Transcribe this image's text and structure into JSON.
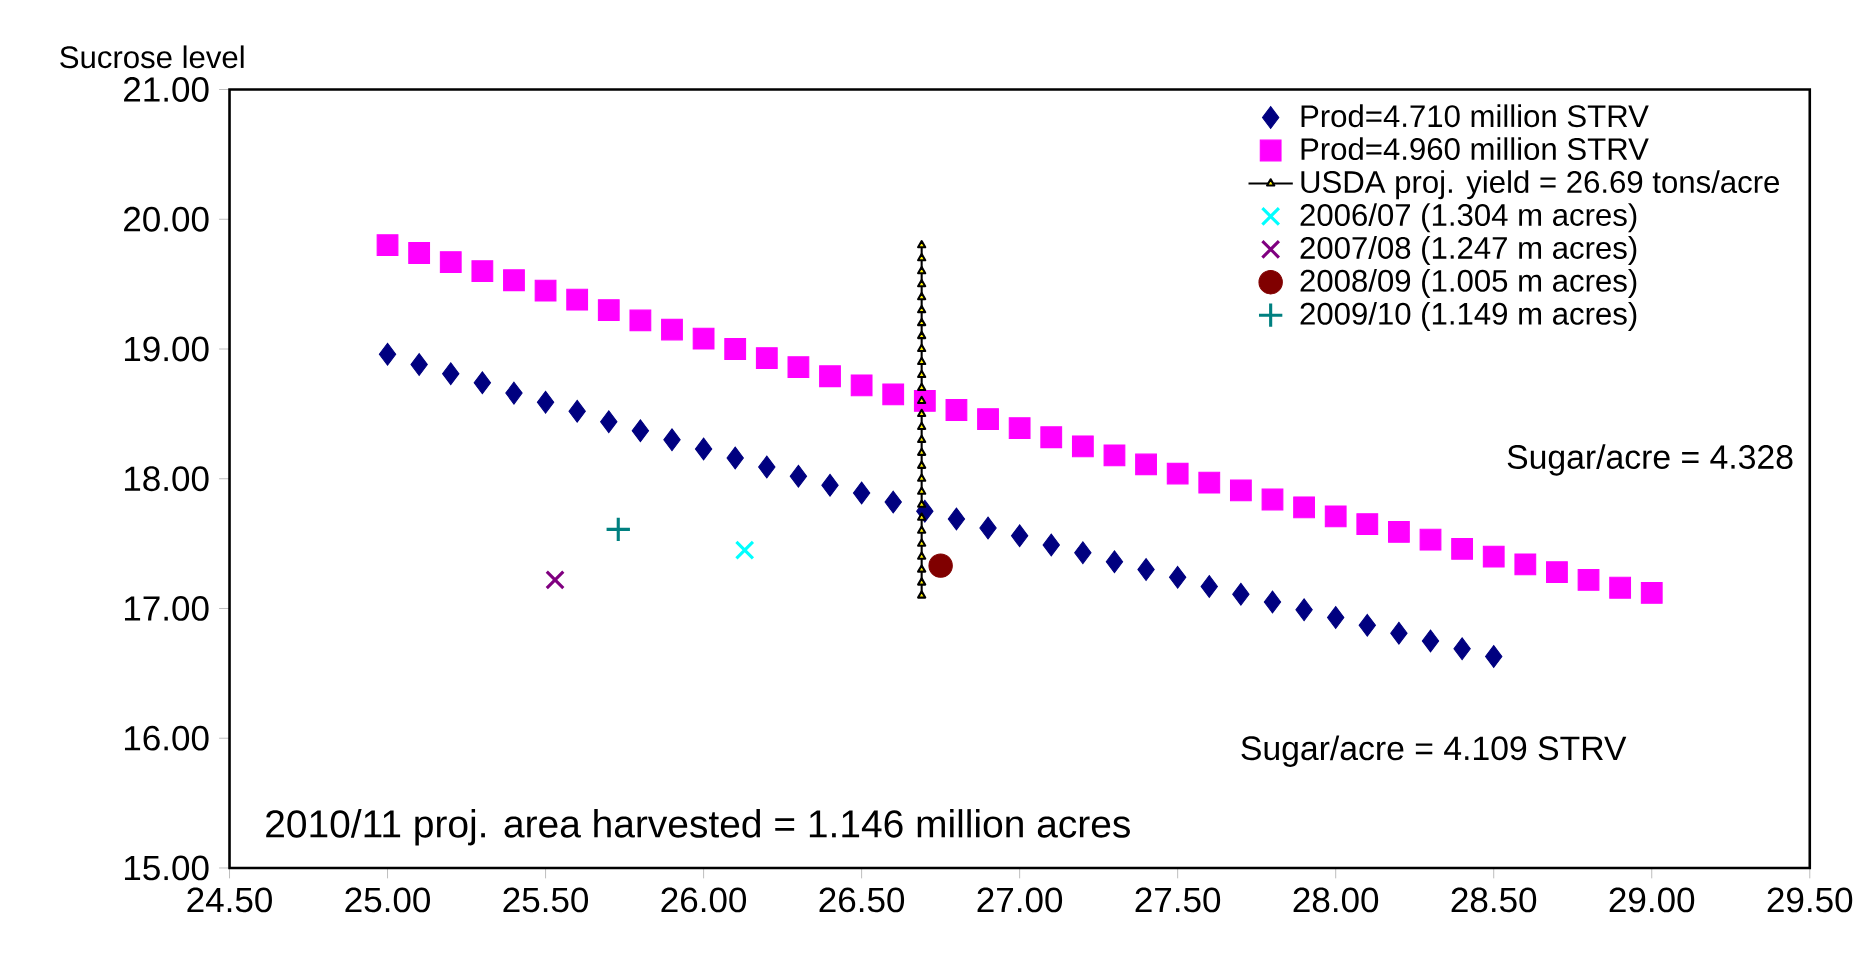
{
  "chart_data": {
    "type": "scatter",
    "ylabel": "Sucrose level",
    "xlim": [
      24.5,
      29.5
    ],
    "ylim": [
      15,
      21
    ],
    "xticks": [
      {
        "value": 24.5,
        "label": "24.50"
      },
      {
        "value": 25,
        "label": "25.00"
      },
      {
        "value": 25.5,
        "label": "25.50"
      },
      {
        "value": 26,
        "label": "26.00"
      },
      {
        "value": 26.5,
        "label": "26.50"
      },
      {
        "value": 27,
        "label": "27.00"
      },
      {
        "value": 27.5,
        "label": "27.50"
      },
      {
        "value": 28,
        "label": "28.00"
      },
      {
        "value": 28.5,
        "label": "28.50"
      },
      {
        "value": 29,
        "label": "29.00"
      },
      {
        "value": 29.5,
        "label": "29.50"
      }
    ],
    "yticks": [
      {
        "value": 15,
        "label": "15.00"
      },
      {
        "value": 16,
        "label": "16.00"
      },
      {
        "value": 17,
        "label": "17.00"
      },
      {
        "value": 18,
        "label": "18.00"
      },
      {
        "value": 19,
        "label": "19.00"
      },
      {
        "value": 20,
        "label": "20.00"
      },
      {
        "value": 21,
        "label": "21.00"
      }
    ],
    "grid": false,
    "legend": "top right",
    "annotations": [
      "Sugar/acre = 4.328",
      "Sugar/acre = 4.109  STRV",
      "2010/11 proj. area harvested = 1.146 million acres"
    ],
    "series": [
      {
        "name": "Prod=4.710 million STRV",
        "color": "#000080",
        "marker": "diamond",
        "x": [
          25.0,
          25.1,
          25.2,
          25.3,
          25.4,
          25.5,
          25.6,
          25.7,
          25.8,
          25.9,
          26.0,
          26.1,
          26.2,
          26.3,
          26.4,
          26.5,
          26.6,
          26.7,
          26.8,
          26.9,
          27.0,
          27.1,
          27.2,
          27.3,
          27.4,
          27.5,
          27.6,
          27.7,
          27.8,
          27.9,
          28.0,
          28.1,
          28.2,
          28.3,
          28.4,
          28.5
        ],
        "values": [
          18.96,
          18.88,
          18.81,
          18.74,
          18.66,
          18.59,
          18.52,
          18.44,
          18.37,
          18.3,
          18.23,
          18.16,
          18.09,
          18.02,
          17.95,
          17.89,
          17.82,
          17.75,
          17.69,
          17.62,
          17.56,
          17.49,
          17.43,
          17.36,
          17.3,
          17.24,
          17.17,
          17.11,
          17.05,
          16.99,
          16.93,
          16.87,
          16.81,
          16.75,
          16.69,
          16.63
        ]
      },
      {
        "name": "Prod=4.960 million STRV",
        "color": "#ff00ff",
        "marker": "square",
        "x": [
          25.0,
          25.1,
          25.2,
          25.3,
          25.4,
          25.5,
          25.6,
          25.7,
          25.8,
          25.9,
          26.0,
          26.1,
          26.2,
          26.3,
          26.4,
          26.5,
          26.6,
          26.7,
          26.8,
          26.9,
          27.0,
          27.1,
          27.2,
          27.3,
          27.4,
          27.5,
          27.6,
          27.7,
          27.8,
          27.9,
          28.0,
          28.1,
          28.2,
          28.3,
          28.4,
          28.5,
          28.6,
          28.7,
          28.8,
          28.9,
          29.0
        ],
        "values": [
          19.8,
          19.74,
          19.67,
          19.6,
          19.53,
          19.45,
          19.38,
          19.3,
          19.22,
          19.15,
          19.08,
          19.0,
          18.93,
          18.86,
          18.79,
          18.72,
          18.65,
          18.6,
          18.53,
          18.46,
          18.39,
          18.32,
          18.25,
          18.18,
          18.11,
          18.04,
          17.97,
          17.91,
          17.84,
          17.78,
          17.71,
          17.65,
          17.59,
          17.53,
          17.46,
          17.4,
          17.34,
          17.28,
          17.22,
          17.16,
          17.12
        ]
      },
      {
        "name": "USDA proj. yield = 26.69 tons/acre",
        "type": "line",
        "color": "#000000",
        "marker": "triangle",
        "x": [
          26.69,
          26.69,
          26.69,
          26.69,
          26.69,
          26.69,
          26.69,
          26.69,
          26.69,
          26.69,
          26.69,
          26.69,
          26.69,
          26.69,
          26.69,
          26.69,
          26.69,
          26.69,
          26.69,
          26.69,
          26.69,
          26.69,
          26.69,
          26.69,
          26.69,
          26.69,
          26.69,
          26.69
        ],
        "values": [
          17.1,
          17.2,
          17.3,
          17.4,
          17.5,
          17.6,
          17.7,
          17.8,
          17.9,
          18.0,
          18.1,
          18.2,
          18.3,
          18.4,
          18.5,
          18.6,
          18.7,
          18.8,
          18.9,
          19.0,
          19.1,
          19.2,
          19.3,
          19.4,
          19.5,
          19.6,
          19.7,
          19.8
        ]
      },
      {
        "name": "2006/07 (1.304 m acres)",
        "color": "#00ffff",
        "marker": "cross",
        "x": [
          26.13
        ],
        "values": [
          17.45
        ]
      },
      {
        "name": "2007/08 (1.247 m acres)",
        "color": "#800080",
        "marker": "cross",
        "x": [
          25.53
        ],
        "values": [
          17.22
        ]
      },
      {
        "name": "2008/09 (1.005 m acres)",
        "color": "#800000",
        "marker": "circle",
        "x": [
          26.75
        ],
        "values": [
          17.33
        ]
      },
      {
        "name": "2009/10 (1.149 m acres)",
        "color": "#008080",
        "marker": "plus",
        "x": [
          25.73
        ],
        "values": [
          17.61
        ]
      }
    ]
  }
}
